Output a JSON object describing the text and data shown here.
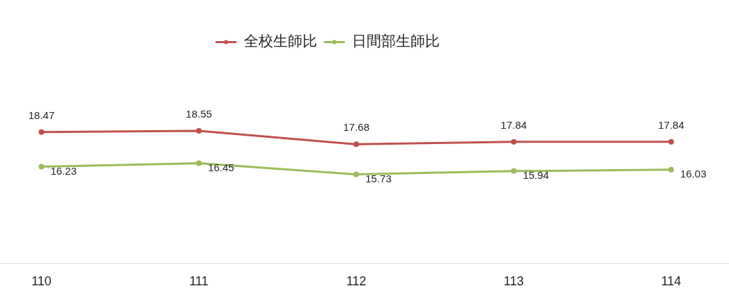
{
  "chart_data": {
    "type": "line",
    "categories": [
      "110",
      "111",
      "112",
      "113",
      "114"
    ],
    "series": [
      {
        "name": "全校生師比",
        "color": "#c0504d",
        "values": [
          18.47,
          18.55,
          17.68,
          17.84,
          17.84
        ]
      },
      {
        "name": "日間部生師比",
        "color": "#9bbb59",
        "values": [
          16.23,
          16.45,
          15.73,
          15.94,
          16.03
        ]
      }
    ],
    "tick_labels": "x",
    "data_labels": true,
    "legend": "top",
    "marker": "circle"
  }
}
